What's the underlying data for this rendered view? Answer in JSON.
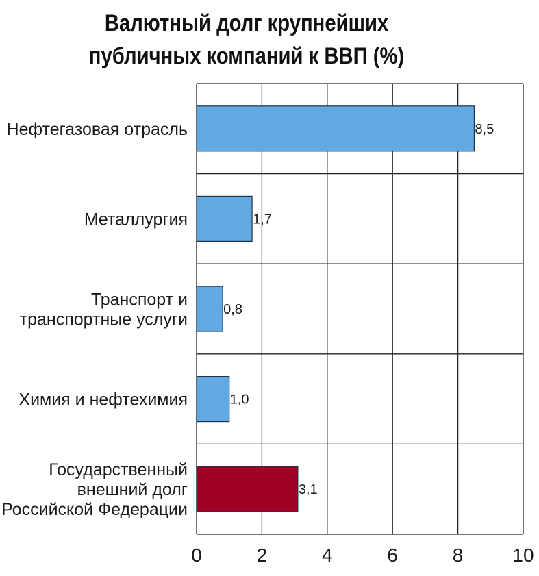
{
  "chart_data": {
    "type": "bar",
    "orientation": "horizontal",
    "title": "Валютный долг крупнейших публичных компаний к ВВП (%)",
    "title_lines": [
      "Валютный долг крупнейших",
      "публичных компаний к ВВП (%)"
    ],
    "categories": [
      "Нефтегазовая отрасль",
      "Металлургия",
      "Транспорт и транспортные услуги",
      "Химия и нефтехимия",
      "Государственный внешний долг Российской Федерации"
    ],
    "category_lines": [
      [
        "Нефтегазовая отрасль"
      ],
      [
        "Металлургия"
      ],
      [
        "Транспорт и",
        "транспортные услуги"
      ],
      [
        "Химия и нефтехимия"
      ],
      [
        "Государственный",
        "внешний долг",
        "Российской Федерации"
      ]
    ],
    "values": [
      8.5,
      1.7,
      0.8,
      1.0,
      3.1
    ],
    "value_labels": [
      "8,5",
      "1,7",
      "0,8",
      "1,0",
      "3,1"
    ],
    "bar_colors": [
      "#62a8e3",
      "#62a8e3",
      "#62a8e3",
      "#62a8e3",
      "#a10025"
    ],
    "xlim": [
      0,
      10
    ],
    "xticks": [
      0,
      2,
      4,
      6,
      8,
      10
    ],
    "xtick_labels": [
      "0",
      "2",
      "4",
      "6",
      "8",
      "10"
    ],
    "xlabel": "",
    "ylabel": "",
    "grid": true
  }
}
